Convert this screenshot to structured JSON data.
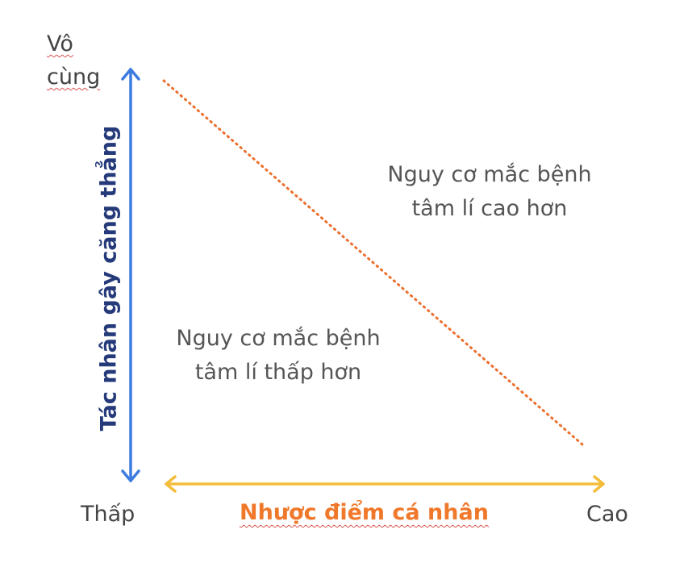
{
  "diagram": {
    "top_label_lines": [
      "Vô",
      "cùng"
    ],
    "y_axis_title": "Tác nhân gây căng thẳng",
    "x_axis_title": "Nhược điểm cá nhân",
    "x_low_label": "Thấp",
    "x_high_label": "Cao",
    "upper_region_lines": [
      "Nguy cơ mắc bệnh",
      "tâm lí cao hơn"
    ],
    "lower_region_lines": [
      "Nguy cơ mắc bệnh",
      "tâm lí thấp hơn"
    ],
    "colors": {
      "y_axis_arrow": "#3d7be0",
      "x_axis_arrow": "#f3bd3a",
      "divider_line": "#ec6f2e",
      "y_axis_title": "#253a7a",
      "x_axis_title": "#f0782a",
      "text": "#444444"
    }
  }
}
